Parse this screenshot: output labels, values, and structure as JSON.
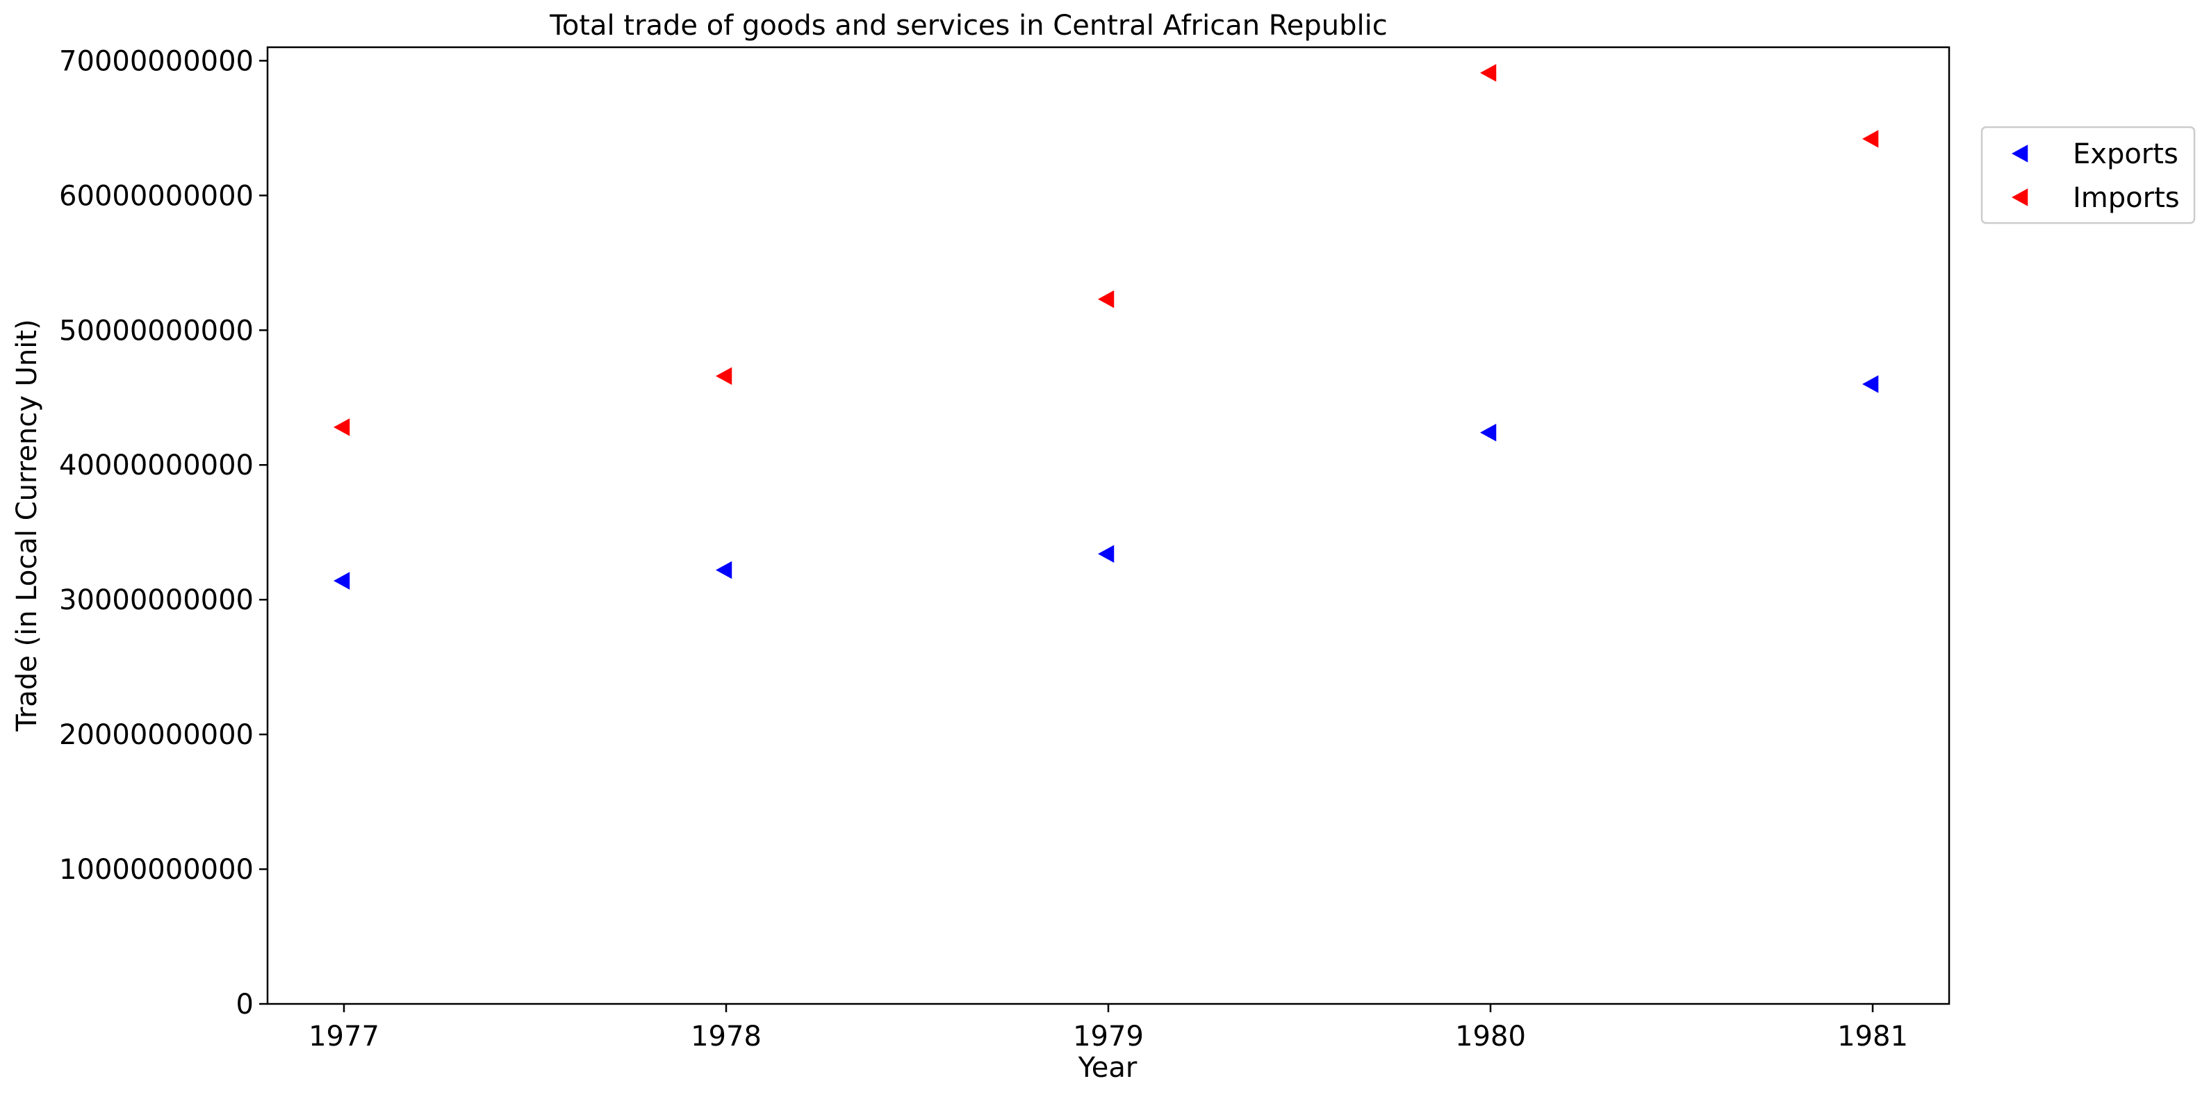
{
  "chart_data": {
    "type": "scatter",
    "title": "Total trade of goods and services in Central African Republic",
    "xlabel": "Year",
    "ylabel": "Trade (in Local Currency Unit)",
    "x": [
      "1977",
      "1978",
      "1979",
      "1980",
      "1981"
    ],
    "xlim": [
      1976.8,
      1981.2
    ],
    "ylim": [
      0,
      71000000000
    ],
    "yticks": [
      0,
      10000000000,
      20000000000,
      30000000000,
      40000000000,
      50000000000,
      60000000000,
      70000000000
    ],
    "ytick_labels": [
      "0",
      "10000000000",
      "20000000000",
      "30000000000",
      "40000000000",
      "50000000000",
      "60000000000",
      "70000000000"
    ],
    "grid": false,
    "legend_position": "upper right, outside plot area",
    "marker": "triangle-left",
    "series": [
      {
        "name": "Exports",
        "color": "#0000ff",
        "values": [
          31400000000,
          32200000000,
          33400000000,
          42400000000,
          46000000000
        ]
      },
      {
        "name": "Imports",
        "color": "#ff0000",
        "values": [
          42800000000,
          46600000000,
          52300000000,
          69100000000,
          64200000000
        ]
      }
    ]
  }
}
